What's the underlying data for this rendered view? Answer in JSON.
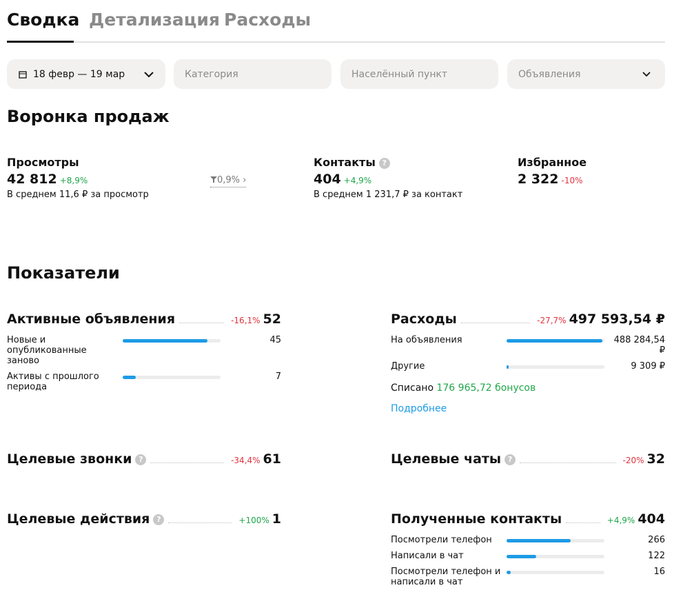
{
  "tabs": [
    "Сводка",
    "Детализация",
    "Расходы"
  ],
  "filters": {
    "date": "18 февр — 19 мар",
    "category": "Категория",
    "city": "Населённый пункт",
    "ads": "Объявления"
  },
  "funnel": {
    "title": "Воронка продаж",
    "items": [
      {
        "label": "Просмотры",
        "value": "42 812",
        "change": "+8,9%",
        "note": "В среднем 11,6 ₽ за просмотр"
      },
      {
        "label": "Контакты",
        "value": "404",
        "change": "+4,9%",
        "note": "В среднем 1 231,7 ₽ за контакт"
      },
      {
        "label": "Избранное",
        "value": "2 322",
        "change": "-10%"
      }
    ],
    "conversion": "0,9%"
  },
  "metrics": {
    "title": "Показатели",
    "cards": [
      {
        "title": "Активные объявления",
        "change": "-16,1%",
        "total": 52,
        "rows": [
          {
            "label": "Новые и опубликованные заново",
            "value": 45
          },
          {
            "label": "Активы с прошлого периода",
            "value": 7
          }
        ]
      },
      {
        "title": "Расходы",
        "change": "-27,7%",
        "total": {
          "value": 497593.54,
          "label": "497 593,54 ₽"
        },
        "rows": [
          {
            "label": "На объявления",
            "value": {
              "value": 488284.54,
              "label": "488 284,54 ₽"
            }
          },
          {
            "label": "Другие",
            "value": {
              "value": 9309,
              "label": "9 309 ₽"
            }
          }
        ],
        "written_off": "Списано",
        "bonuses": "176 965,72 бонусов",
        "more": "Подробнее"
      },
      {
        "title": "Целевые звонки",
        "help": true,
        "change": "-34,4%",
        "total": 61
      },
      {
        "title": "Целевые чаты",
        "help": true,
        "change": "-20%",
        "total": 32
      },
      {
        "title": "Целевые действия",
        "help": true,
        "change": "+100%",
        "total": 1
      },
      {
        "title": "Полученные контакты",
        "change": "+4,9%",
        "total": 404,
        "rows": [
          {
            "label": "Посмотрели телефон",
            "value": 266
          },
          {
            "label": "Написали в чат",
            "value": 122
          },
          {
            "label": "Посмотрели телефон и написали в чат",
            "value": 16
          }
        ]
      }
    ]
  }
}
